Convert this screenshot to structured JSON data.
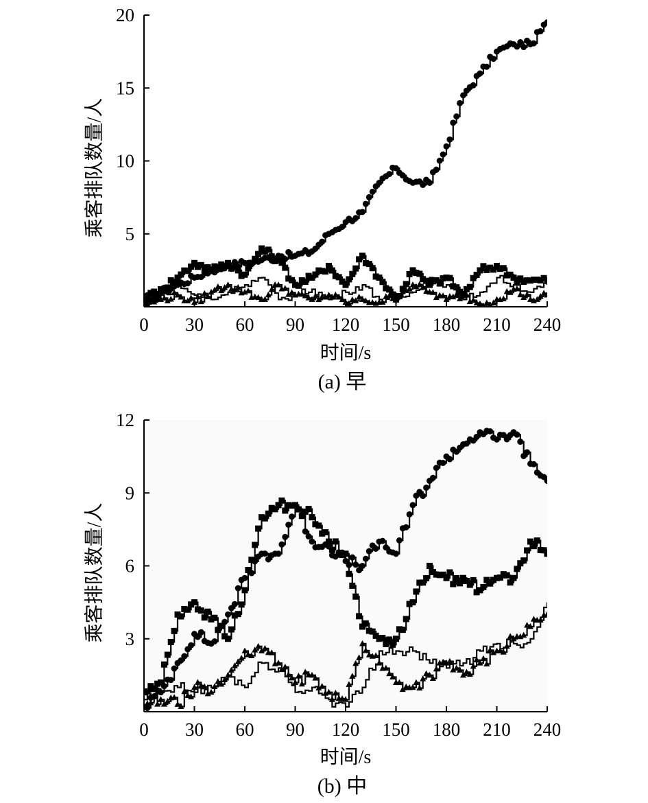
{
  "chart_data": [
    {
      "type": "line",
      "caption": "(a) 早",
      "xlabel": "时间/s",
      "ylabel": "乘客排队数量/人",
      "xlim": [
        0,
        240
      ],
      "ylim": [
        0,
        20
      ],
      "x_ticks": [
        "0",
        "30",
        "60",
        "90",
        "120",
        "150",
        "180",
        "210",
        "240"
      ],
      "y_ticks": [
        "5",
        "10",
        "15",
        "20"
      ],
      "grid": false,
      "plot_background": "#ffffff",
      "series": [
        {
          "marker": "circle",
          "x": [
            0,
            10,
            20,
            30,
            40,
            50,
            60,
            70,
            80,
            90,
            100,
            110,
            120,
            130,
            140,
            150,
            160,
            170,
            180,
            190,
            200,
            210,
            220,
            230,
            240
          ],
          "y": [
            0.5,
            1.0,
            1.5,
            2.0,
            2.5,
            2.8,
            3.0,
            3.2,
            3.5,
            3.5,
            3.8,
            5.0,
            5.8,
            6.5,
            8.5,
            9.5,
            8.5,
            8.5,
            11.0,
            14.5,
            16.0,
            17.5,
            18.0,
            18.0,
            19.5
          ]
        },
        {
          "marker": "square",
          "x": [
            0,
            10,
            20,
            30,
            40,
            50,
            60,
            70,
            80,
            90,
            100,
            110,
            120,
            130,
            140,
            150,
            160,
            170,
            180,
            190,
            200,
            210,
            220,
            230,
            240
          ],
          "y": [
            0.5,
            1.2,
            2.0,
            3.0,
            2.5,
            3.0,
            2.2,
            4.0,
            3.2,
            1.5,
            2.0,
            2.8,
            1.5,
            3.5,
            2.0,
            0.5,
            2.5,
            1.5,
            2.0,
            0.8,
            2.5,
            2.8,
            2.0,
            1.8,
            1.8
          ]
        },
        {
          "marker": "triangle",
          "x": [
            0,
            10,
            20,
            30,
            40,
            50,
            60,
            70,
            80,
            90,
            100,
            110,
            120,
            130,
            140,
            150,
            160,
            170,
            180,
            190,
            200,
            210,
            220,
            230,
            240
          ],
          "y": [
            0.2,
            0.5,
            0.8,
            0.3,
            1.0,
            1.5,
            1.0,
            0.5,
            1.5,
            0.8,
            0.5,
            0.8,
            0.3,
            0.5,
            0.3,
            0.8,
            1.5,
            1.0,
            0.5,
            0.8,
            0.2,
            0.5,
            1.2,
            0.5,
            0.8
          ]
        },
        {
          "marker": "none",
          "x": [
            0,
            10,
            20,
            30,
            40,
            50,
            60,
            70,
            80,
            90,
            100,
            110,
            120,
            130,
            140,
            150,
            160,
            170,
            180,
            190,
            200,
            210,
            220,
            230,
            240
          ],
          "y": [
            0.3,
            0.8,
            1.5,
            0.8,
            0.5,
            1.0,
            1.5,
            2.0,
            0.5,
            0.8,
            1.2,
            0.5,
            1.0,
            1.5,
            0.5,
            0.5,
            1.0,
            2.0,
            1.5,
            0.5,
            1.0,
            2.0,
            1.5,
            1.0,
            1.5
          ]
        }
      ]
    },
    {
      "type": "line",
      "caption": "(b) 中",
      "xlabel": "时间/s",
      "ylabel": "乘客排队数量/人",
      "xlim": [
        0,
        240
      ],
      "ylim": [
        0,
        12
      ],
      "x_ticks": [
        "0",
        "30",
        "60",
        "90",
        "120",
        "150",
        "180",
        "210",
        "240"
      ],
      "y_ticks": [
        "3",
        "6",
        "9",
        "12"
      ],
      "grid": false,
      "plot_background": "#fafafa",
      "series": [
        {
          "marker": "circle",
          "x": [
            0,
            10,
            20,
            30,
            40,
            50,
            60,
            70,
            80,
            90,
            100,
            110,
            120,
            130,
            140,
            150,
            160,
            170,
            180,
            190,
            200,
            210,
            220,
            230,
            240
          ],
          "y": [
            0.2,
            0.8,
            2.0,
            3.2,
            2.8,
            4.0,
            5.5,
            6.5,
            6.5,
            8.5,
            7.0,
            6.8,
            6.2,
            6.0,
            7.0,
            6.5,
            8.5,
            9.5,
            10.5,
            11.0,
            11.5,
            11.2,
            11.5,
            10.2,
            9.5
          ]
        },
        {
          "marker": "square",
          "x": [
            0,
            10,
            20,
            30,
            40,
            50,
            60,
            70,
            80,
            90,
            100,
            110,
            120,
            130,
            140,
            150,
            160,
            170,
            180,
            190,
            200,
            210,
            220,
            230,
            240
          ],
          "y": [
            0.8,
            1.2,
            4.0,
            4.5,
            3.8,
            3.0,
            5.0,
            8.0,
            8.5,
            8.5,
            8.0,
            7.0,
            6.5,
            3.5,
            3.0,
            3.0,
            4.5,
            6.0,
            5.5,
            5.5,
            5.0,
            5.5,
            5.5,
            7.0,
            6.5
          ]
        },
        {
          "marker": "triangle",
          "x": [
            0,
            10,
            20,
            30,
            40,
            50,
            60,
            70,
            80,
            90,
            100,
            110,
            120,
            130,
            140,
            150,
            160,
            170,
            180,
            190,
            200,
            210,
            220,
            230,
            240
          ],
          "y": [
            0.2,
            0.5,
            0.3,
            1.0,
            0.8,
            1.5,
            2.5,
            2.5,
            2.0,
            1.2,
            1.5,
            0.8,
            0.5,
            2.8,
            2.0,
            1.2,
            1.0,
            1.5,
            2.0,
            1.5,
            2.0,
            2.5,
            3.0,
            3.5,
            4.0
          ]
        },
        {
          "marker": "none",
          "x": [
            0,
            10,
            20,
            30,
            40,
            50,
            60,
            70,
            80,
            90,
            100,
            110,
            120,
            130,
            140,
            150,
            160,
            170,
            180,
            190,
            200,
            210,
            220,
            230,
            240
          ],
          "y": [
            0.5,
            0.8,
            1.0,
            0.8,
            1.0,
            1.5,
            1.0,
            2.0,
            1.8,
            0.8,
            1.0,
            0.5,
            0.2,
            1.0,
            2.5,
            2.5,
            2.5,
            2.0,
            1.8,
            2.0,
            2.5,
            2.8,
            2.8,
            3.0,
            4.5
          ]
        }
      ]
    }
  ]
}
